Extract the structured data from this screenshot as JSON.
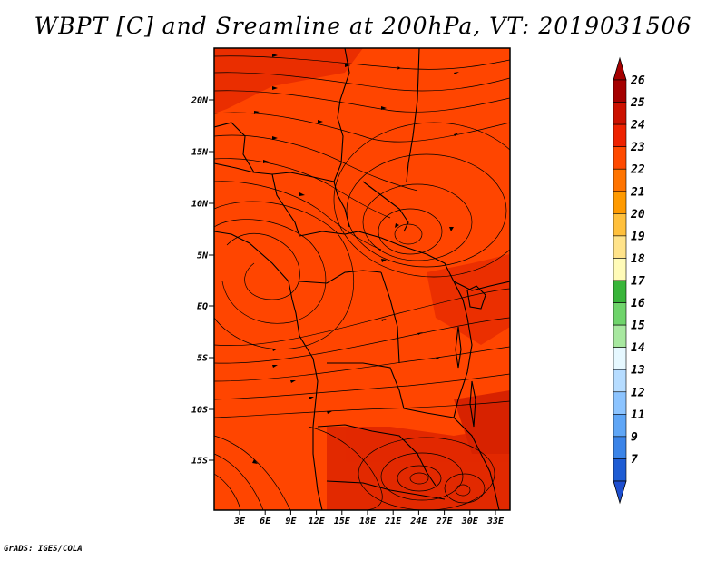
{
  "title": "WBPT [C] and Sreamline at 200hPa, VT: 2019031506",
  "footer": "GrADS: IGES/COLA",
  "map": {
    "lat_ticks": [
      "20N",
      "15N",
      "10N",
      "5N",
      "EQ",
      "5S",
      "10S",
      "15S"
    ],
    "lon_ticks": [
      "3E",
      "6E",
      "9E",
      "12E",
      "15E",
      "18E",
      "21E",
      "24E",
      "27E",
      "30E",
      "33E"
    ],
    "fill_color": "#ff4500"
  },
  "colorbar": {
    "levels": [
      {
        "label": "26",
        "color": "#a50000"
      },
      {
        "label": "25",
        "color": "#cc1100"
      },
      {
        "label": "24",
        "color": "#ee2200"
      },
      {
        "label": "23",
        "color": "#ff4a00"
      },
      {
        "label": "22",
        "color": "#ff7400"
      },
      {
        "label": "21",
        "color": "#ff9a00"
      },
      {
        "label": "20",
        "color": "#ffc03c"
      },
      {
        "label": "19",
        "color": "#ffe38a"
      },
      {
        "label": "18",
        "color": "#fffbb8"
      },
      {
        "label": "17",
        "color": "#39b53a"
      },
      {
        "label": "16",
        "color": "#6fd46b"
      },
      {
        "label": "15",
        "color": "#a8e8a0"
      },
      {
        "label": "14",
        "color": "#e6f8ff"
      },
      {
        "label": "13",
        "color": "#b6dcff"
      },
      {
        "label": "12",
        "color": "#8cc4ff"
      },
      {
        "label": "11",
        "color": "#5fa6f6"
      },
      {
        "label": "9",
        "color": "#3b84e8"
      },
      {
        "label": "7",
        "color": "#1e5cd4"
      }
    ],
    "bottom_color": "#1e4fd0"
  }
}
